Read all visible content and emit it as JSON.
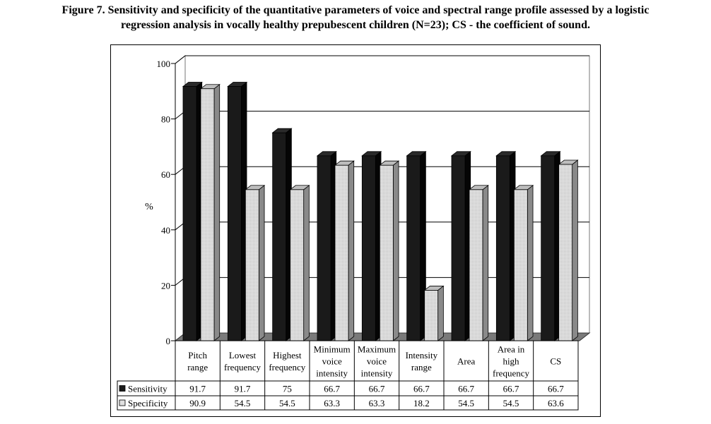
{
  "caption": {
    "line1": "Figure 7. Sensitivity and specificity of the quantitative parameters of voice and spectral range profile assessed by a logistic",
    "line2": "regression analysis in vocally healthy prepubescent children (N=23); CS - the coefficient of sound."
  },
  "chart_data": {
    "type": "bar",
    "title": "",
    "xlabel": "",
    "ylabel": "%",
    "ylim": [
      0,
      100
    ],
    "yticks": [
      "0",
      "20",
      "40",
      "60",
      "80",
      "100"
    ],
    "grid": true,
    "legend": "table-left",
    "categories": [
      [
        "Pitch",
        "range"
      ],
      [
        "Lowest",
        "frequency"
      ],
      [
        "Highest",
        "frequency"
      ],
      [
        "Minimum",
        "voice",
        "intensity"
      ],
      [
        "Maximum",
        "voice",
        "intensity"
      ],
      [
        "Intensity",
        "range"
      ],
      [
        "Area"
      ],
      [
        "Area in",
        "high",
        "frequency"
      ],
      [
        "CS"
      ]
    ],
    "series": [
      {
        "name": "Sensitivity",
        "color": "#1a1a1a",
        "values": [
          91.7,
          91.7,
          75,
          66.7,
          66.7,
          66.7,
          66.7,
          66.7,
          66.7
        ],
        "labels": [
          "91.7",
          "91.7",
          "75",
          "66.7",
          "66.7",
          "66.7",
          "66.7",
          "66.7",
          "66.7"
        ]
      },
      {
        "name": "Specificity",
        "color": "#d9d9d9",
        "values": [
          90.9,
          54.5,
          54.5,
          63.3,
          63.3,
          18.2,
          54.5,
          54.5,
          63.6
        ],
        "labels": [
          "90.9",
          "54.5",
          "54.5",
          "63.3",
          "63.3",
          "18.2",
          "54.5",
          "54.5",
          "63.6"
        ]
      }
    ]
  }
}
